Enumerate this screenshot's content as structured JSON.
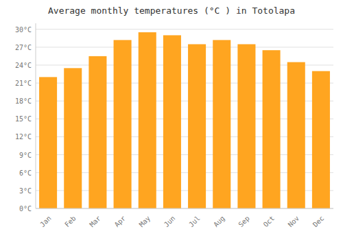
{
  "chart_data": {
    "type": "bar",
    "title": "Average monthly temperatures (°C ) in Totolapa",
    "categories": [
      "Jan",
      "Feb",
      "Mar",
      "Apr",
      "May",
      "Jun",
      "Jul",
      "Aug",
      "Sep",
      "Oct",
      "Nov",
      "Dec"
    ],
    "values": [
      22.0,
      23.5,
      25.5,
      28.2,
      29.5,
      29.0,
      27.5,
      28.2,
      27.5,
      26.5,
      24.5,
      23.0
    ],
    "color": "#FFA520",
    "ylim": [
      0,
      31
    ],
    "yticks": [
      {
        "value": 0,
        "label": "0°C"
      },
      {
        "value": 3,
        "label": "3°C"
      },
      {
        "value": 6,
        "label": "6°C"
      },
      {
        "value": 9,
        "label": "9°C"
      },
      {
        "value": 12,
        "label": "12°C"
      },
      {
        "value": 15,
        "label": "15°C"
      },
      {
        "value": 18,
        "label": "18°C"
      },
      {
        "value": 21,
        "label": "21°C"
      },
      {
        "value": 24,
        "label": "24°C"
      },
      {
        "value": 27,
        "label": "27°C"
      },
      {
        "value": 30,
        "label": "30°C"
      }
    ],
    "grid": true
  }
}
